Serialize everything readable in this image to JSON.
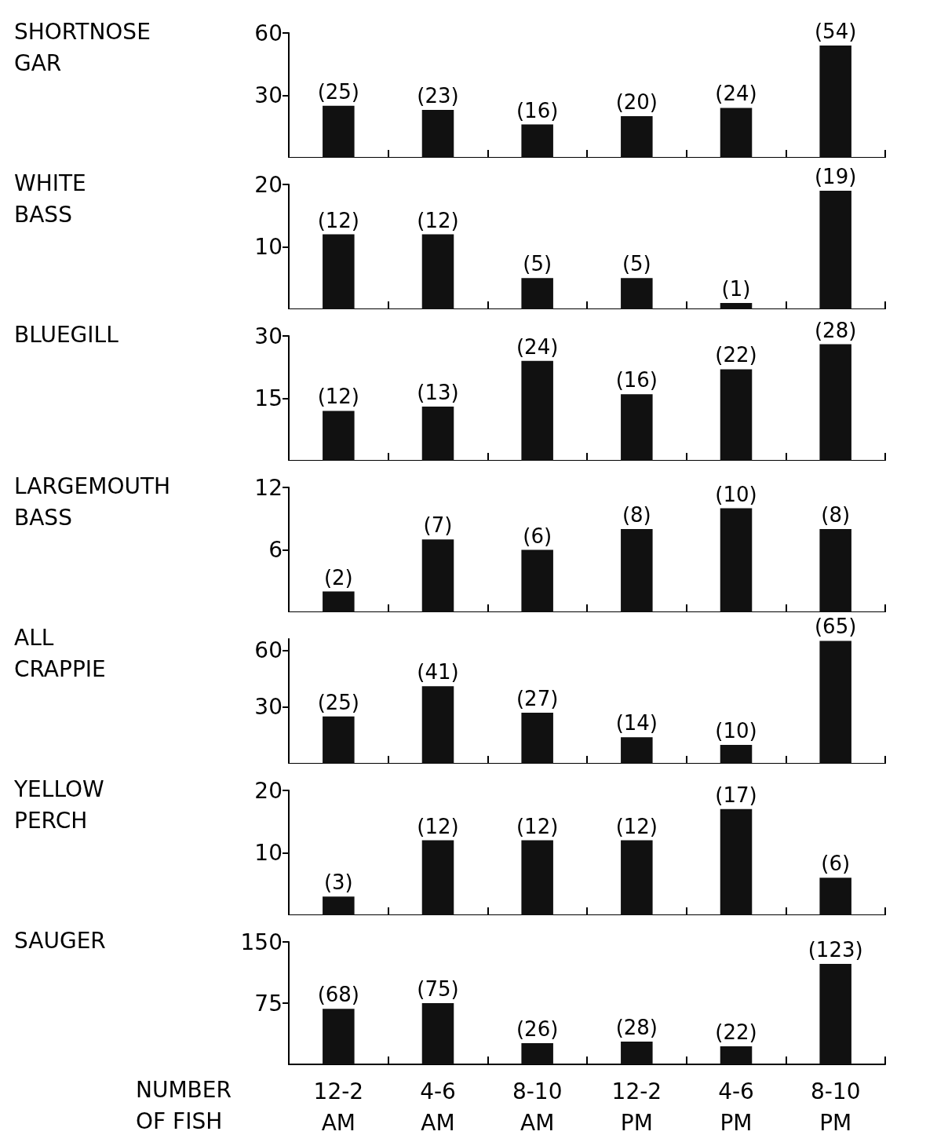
{
  "chart_data": [
    {
      "type": "bar",
      "ylabel": "SHORTNOSE\nGAR",
      "categories": [
        null,
        null,
        null,
        null,
        null,
        null
      ],
      "values": [
        25,
        23,
        16,
        20,
        24,
        54
      ],
      "value_labels": [
        "(25)",
        "(23)",
        "(16)",
        "(20)",
        "(24)",
        "(54)"
      ],
      "color": "#111111",
      "ylim": [
        0,
        60
      ],
      "yticks": [
        30,
        60
      ],
      "tick_labels": "y"
    },
    {
      "type": "bar",
      "ylabel": "WHITE\nBASS",
      "categories": [
        null,
        null,
        null,
        null,
        null,
        null
      ],
      "values": [
        12,
        12,
        5,
        5,
        1,
        19
      ],
      "value_labels": [
        "(12)",
        "(12)",
        "(5)",
        "(5)",
        "(1)",
        "(19)"
      ],
      "color": "#111111",
      "ylim": [
        0,
        20
      ],
      "yticks": [
        10,
        20
      ],
      "tick_labels": "y"
    },
    {
      "type": "bar",
      "ylabel": "BLUEGILL",
      "categories": [
        null,
        null,
        null,
        null,
        null,
        null
      ],
      "values": [
        12,
        13,
        24,
        16,
        22,
        28
      ],
      "value_labels": [
        "(12)",
        "(13)",
        "(24)",
        "(16)",
        "(22)",
        "(28)"
      ],
      "color": "#111111",
      "ylim": [
        0,
        30
      ],
      "yticks": [
        15,
        30
      ],
      "tick_labels": "y"
    },
    {
      "type": "bar",
      "ylabel": "LARGEMOUTH\nBASS",
      "categories": [
        null,
        null,
        null,
        null,
        null,
        null
      ],
      "values": [
        2,
        7,
        6,
        8,
        10,
        8
      ],
      "value_labels": [
        "(2)",
        "(7)",
        "(6)",
        "(8)",
        "(10)",
        "(8)"
      ],
      "color": "#111111",
      "ylim": [
        0,
        12
      ],
      "yticks": [
        6,
        12
      ],
      "tick_labels": "y"
    },
    {
      "type": "bar",
      "ylabel": "ALL\nCRAPPIE",
      "categories": [
        null,
        null,
        null,
        null,
        null,
        null
      ],
      "values": [
        25,
        41,
        27,
        14,
        10,
        65
      ],
      "value_labels": [
        "(25)",
        "(41)",
        "(27)",
        "(14)",
        "(10)",
        "(65)"
      ],
      "color": "#111111",
      "ylim": [
        0,
        66
      ],
      "yticks": [
        30,
        60
      ],
      "tick_labels": "y"
    },
    {
      "type": "bar",
      "ylabel": "YELLOW\nPERCH",
      "categories": [
        null,
        null,
        null,
        null,
        null,
        null
      ],
      "values": [
        3,
        12,
        12,
        12,
        17,
        6
      ],
      "value_labels": [
        "(3)",
        "(12)",
        "(12)",
        "(12)",
        "(17)",
        "(6)"
      ],
      "color": "#111111",
      "ylim": [
        0,
        20
      ],
      "yticks": [
        10,
        20
      ],
      "tick_labels": "y"
    },
    {
      "type": "bar",
      "ylabel": "SAUGER",
      "categories": [
        "12-2\nAM",
        "4-6\nAM",
        "8-10\nAM",
        "12-2\nPM",
        "4-6\nPM",
        "8-10\nPM"
      ],
      "values": [
        68,
        75,
        26,
        28,
        22,
        123
      ],
      "value_labels": [
        "(68)",
        "(75)",
        "(26)",
        "(28)",
        "(22)",
        "(123)"
      ],
      "color": "#111111",
      "ylim": [
        0,
        150
      ],
      "yticks": [
        75,
        150
      ],
      "annotations": [
        "NUMBER\nOF FISH"
      ]
    }
  ]
}
